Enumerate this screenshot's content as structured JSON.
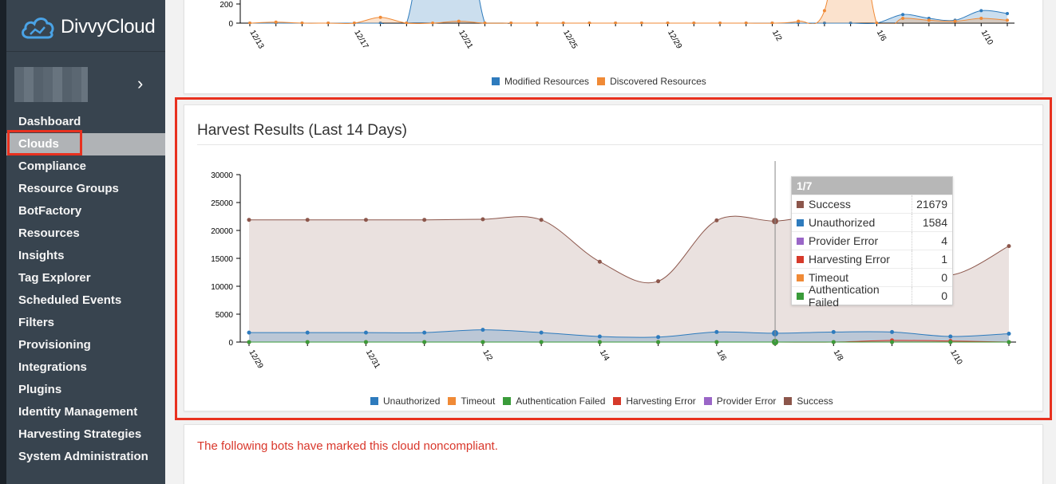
{
  "app": {
    "logo_text": "DivvyCloud",
    "logo_icon": "cloud-logo-icon",
    "account_chevron_icon": "chevron-right-icon"
  },
  "sidebar": {
    "items": [
      {
        "label": "Dashboard",
        "active": false
      },
      {
        "label": "Clouds",
        "active": true
      },
      {
        "label": "Compliance",
        "active": false
      },
      {
        "label": "Resource Groups",
        "active": false
      },
      {
        "label": "BotFactory",
        "active": false
      },
      {
        "label": "Resources",
        "active": false
      },
      {
        "label": "Insights",
        "active": false
      },
      {
        "label": "Tag Explorer",
        "active": false
      },
      {
        "label": "Scheduled Events",
        "active": false
      },
      {
        "label": "Filters",
        "active": false
      },
      {
        "label": "Provisioning",
        "active": false
      },
      {
        "label": "Integrations",
        "active": false
      },
      {
        "label": "Plugins",
        "active": false
      },
      {
        "label": "Identity Management",
        "active": false
      },
      {
        "label": "Harvesting Strategies",
        "active": false
      },
      {
        "label": "System Administration",
        "active": false
      }
    ]
  },
  "colors": {
    "sidebar_bg": "#38444f",
    "highlight": "#e8311f",
    "unauthorized": "#2e7bbd",
    "timeout": "#f08a36",
    "authentication_failed": "#3a9b3a",
    "harvesting_error": "#d63a2a",
    "provider_error": "#9a66c7",
    "success": "#8c564b",
    "modified": "#2e7bbd",
    "discovered": "#f08a36"
  },
  "top_chart": {
    "legend": [
      "Modified Resources",
      "Discovered Resources"
    ],
    "y_tick_labels": [
      "200",
      "0"
    ],
    "x_tick_labels": [
      "12/13",
      "12/17",
      "12/21",
      "12/25",
      "12/29",
      "1/2",
      "1/6",
      "1/10"
    ]
  },
  "harvest": {
    "title": "Harvest Results (Last 14 Days)",
    "legend": [
      "Unauthorized",
      "Timeout",
      "Authentication Failed",
      "Harvesting Error",
      "Provider Error",
      "Success"
    ],
    "tooltip": {
      "date": "1/7",
      "rows": [
        {
          "name": "Success",
          "value": "21679",
          "color": "#8c564b"
        },
        {
          "name": "Unauthorized",
          "value": "1584",
          "color": "#2e7bbd"
        },
        {
          "name": "Provider Error",
          "value": "4",
          "color": "#9a66c7"
        },
        {
          "name": "Harvesting Error",
          "value": "1",
          "color": "#d63a2a"
        },
        {
          "name": "Timeout",
          "value": "0",
          "color": "#f08a36"
        },
        {
          "name": "Authentication Failed",
          "value": "0",
          "color": "#3a9b3a"
        }
      ]
    }
  },
  "bots": {
    "message": "The following bots have marked this cloud noncompliant."
  },
  "chart_data": [
    {
      "type": "area",
      "title": "",
      "x": [
        "12/13",
        "12/14",
        "12/15",
        "12/16",
        "12/17",
        "12/18",
        "12/19",
        "12/20",
        "12/21",
        "12/22",
        "12/23",
        "12/24",
        "12/25",
        "12/26",
        "12/27",
        "12/28",
        "12/29",
        "12/30",
        "12/31",
        "1/1",
        "1/2",
        "1/3",
        "1/4",
        "1/5",
        "1/6",
        "1/7",
        "1/8",
        "1/9",
        "1/10",
        "1/11"
      ],
      "y_ticks": [
        0,
        200
      ],
      "series": [
        {
          "name": "Modified Resources",
          "values": [
            0,
            0,
            0,
            0,
            0,
            0,
            0,
            1500,
            1500,
            0,
            0,
            0,
            0,
            0,
            0,
            0,
            0,
            0,
            0,
            0,
            0,
            0,
            0,
            0,
            0,
            90,
            50,
            30,
            130,
            100
          ]
        },
        {
          "name": "Discovered Resources",
          "values": [
            0,
            10,
            0,
            0,
            0,
            60,
            0,
            0,
            20,
            0,
            0,
            0,
            0,
            0,
            0,
            0,
            0,
            0,
            0,
            0,
            0,
            20,
            130,
            1500,
            0,
            50,
            30,
            20,
            50,
            30
          ]
        }
      ]
    },
    {
      "type": "area",
      "title": "Harvest Results (Last 14 Days)",
      "x": [
        "12/29",
        "12/30",
        "12/31",
        "1/1",
        "1/2",
        "1/3",
        "1/4",
        "1/5",
        "1/6",
        "1/7",
        "1/8",
        "1/9",
        "1/10",
        "1/11"
      ],
      "ylim": [
        0,
        30000
      ],
      "y_ticks": [
        0,
        5000,
        10000,
        15000,
        20000,
        25000,
        30000
      ],
      "x_tick_labels": [
        "12/29",
        "12/31",
        "1/2",
        "1/4",
        "1/6",
        "1/8",
        "1/10"
      ],
      "series": [
        {
          "name": "Success",
          "values": [
            21900,
            21900,
            21900,
            21900,
            22000,
            21900,
            14400,
            10900,
            21800,
            21679,
            22200,
            15000,
            12000,
            17200
          ]
        },
        {
          "name": "Unauthorized",
          "values": [
            1700,
            1700,
            1700,
            1700,
            2200,
            1700,
            1000,
            900,
            1800,
            1584,
            1800,
            1800,
            1000,
            1500
          ]
        },
        {
          "name": "Provider Error",
          "values": [
            0,
            0,
            0,
            0,
            0,
            0,
            0,
            0,
            0,
            4,
            0,
            0,
            0,
            0
          ]
        },
        {
          "name": "Harvesting Error",
          "values": [
            0,
            0,
            0,
            0,
            0,
            0,
            0,
            0,
            0,
            1,
            0,
            300,
            200,
            0
          ]
        },
        {
          "name": "Timeout",
          "values": [
            0,
            0,
            0,
            0,
            0,
            0,
            0,
            0,
            0,
            0,
            0,
            0,
            0,
            0
          ]
        },
        {
          "name": "Authentication Failed",
          "values": [
            0,
            0,
            0,
            0,
            0,
            0,
            0,
            0,
            0,
            0,
            0,
            0,
            0,
            0
          ]
        }
      ]
    }
  ]
}
